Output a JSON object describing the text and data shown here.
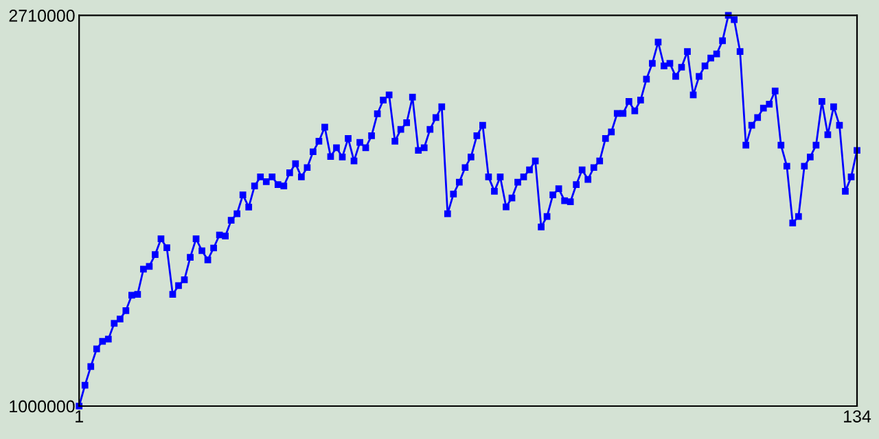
{
  "chart_data": {
    "type": "line",
    "x": [
      1,
      2,
      3,
      4,
      5,
      6,
      7,
      8,
      9,
      10,
      11,
      12,
      13,
      14,
      15,
      16,
      17,
      18,
      19,
      20,
      21,
      22,
      23,
      24,
      25,
      26,
      27,
      28,
      29,
      30,
      31,
      32,
      33,
      34,
      35,
      36,
      37,
      38,
      39,
      40,
      41,
      42,
      43,
      44,
      45,
      46,
      47,
      48,
      49,
      50,
      51,
      52,
      53,
      54,
      55,
      56,
      57,
      58,
      59,
      60,
      61,
      62,
      63,
      64,
      65,
      66,
      67,
      68,
      69,
      70,
      71,
      72,
      73,
      74,
      75,
      76,
      77,
      78,
      79,
      80,
      81,
      82,
      83,
      84,
      85,
      86,
      87,
      88,
      89,
      90,
      91,
      92,
      93,
      94,
      95,
      96,
      97,
      98,
      99,
      100,
      101,
      102,
      103,
      104,
      105,
      106,
      107,
      108,
      109,
      110,
      111,
      112,
      113,
      114,
      115,
      116,
      117,
      118,
      119,
      120,
      121,
      122,
      123,
      124,
      125,
      126,
      127,
      128,
      129,
      130,
      131,
      132,
      133,
      134
    ],
    "series": [
      {
        "color": "#0000ff",
        "values": [
          1000000,
          1091000,
          1173000,
          1250000,
          1283000,
          1293000,
          1362000,
          1381000,
          1418000,
          1485000,
          1489000,
          1599000,
          1611000,
          1663000,
          1732000,
          1693000,
          1489000,
          1527000,
          1553000,
          1651000,
          1732000,
          1680000,
          1640000,
          1692000,
          1749000,
          1744000,
          1813000,
          1842000,
          1924000,
          1871000,
          1963000,
          2003000,
          1982000,
          2003000,
          1969000,
          1963000,
          2021000,
          2061000,
          2003000,
          2044000,
          2113000,
          2159000,
          2221000,
          2092000,
          2131000,
          2090000,
          2171000,
          2073000,
          2154000,
          2131000,
          2183000,
          2279000,
          2339000,
          2362000,
          2159000,
          2211000,
          2240000,
          2352000,
          2119000,
          2131000,
          2211000,
          2263000,
          2310000,
          1842000,
          1928000,
          1980000,
          2044000,
          2090000,
          2183000,
          2229000,
          2003000,
          1940000,
          2003000,
          1872000,
          1911000,
          1980000,
          2003000,
          2034000,
          2073000,
          1784000,
          1830000,
          1924000,
          1951000,
          1899000,
          1894000,
          1969000,
          2034000,
          1992000,
          2044000,
          2073000,
          2171000,
          2200000,
          2281000,
          2281000,
          2333000,
          2292000,
          2339000,
          2431000,
          2500000,
          2593000,
          2489000,
          2500000,
          2443000,
          2483000,
          2552000,
          2362000,
          2443000,
          2489000,
          2523000,
          2541000,
          2599000,
          2710000,
          2691000,
          2552000,
          2142000,
          2229000,
          2263000,
          2304000,
          2321000,
          2379000,
          2142000,
          2050000,
          1801000,
          1830000,
          2050000,
          2090000,
          2142000,
          2333000,
          2188000,
          2310000,
          2229000,
          1940000,
          2003000,
          2119000
        ]
      }
    ],
    "xlim": [
      1,
      134
    ],
    "ylim": [
      1000000,
      2710000
    ],
    "xticks": [
      1,
      134
    ],
    "yticks": [
      1000000,
      2710000
    ],
    "marker": "square",
    "line_style": "solid",
    "grid": false
  }
}
